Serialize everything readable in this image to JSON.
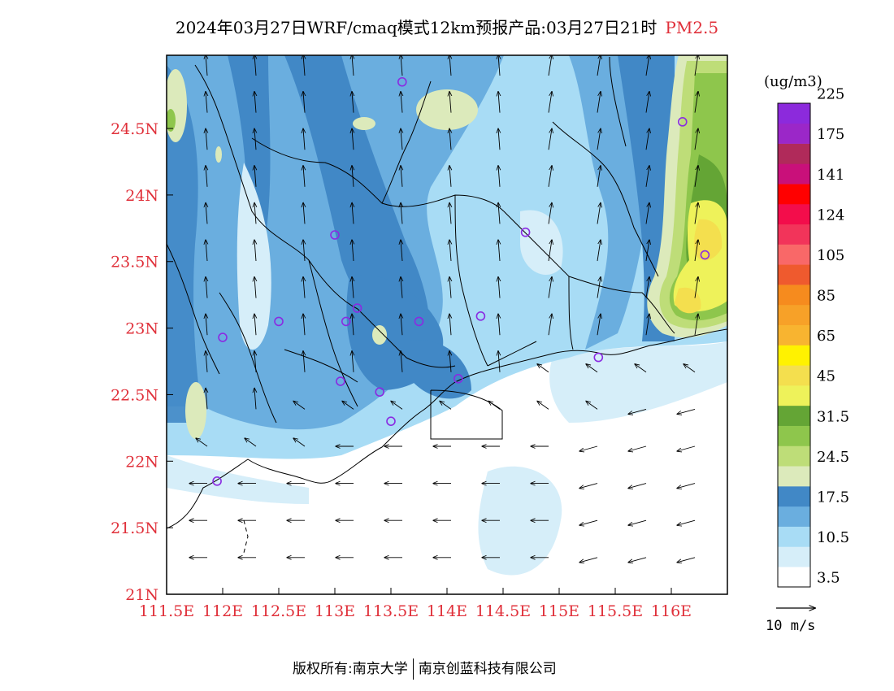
{
  "title": {
    "main": "2024年03月27日WRF/cmaq模式12km预报产品:03月27日21时",
    "pollutant": "PM2.5"
  },
  "footer": {
    "copyright": "版权所有:南京大学",
    "company": "南京创蓝科技有限公司"
  },
  "legend": {
    "unit": "(ug/m3)",
    "colors": [
      "#ffffff",
      "#d6eef9",
      "#a8dcf5",
      "#6aaedf",
      "#4188c6",
      "#dceabb",
      "#bedd78",
      "#8ec64c",
      "#64a535",
      "#eef25a",
      "#f4df4e",
      "#fff200",
      "#f8b430",
      "#f7a128",
      "#f68b1e",
      "#ef5a2e",
      "#f96868",
      "#f2345a",
      "#f30d4b",
      "#ff0000",
      "#c9107a",
      "#b02a5a",
      "#9b27c8",
      "#8c2adc"
    ],
    "labels": [
      {
        "text": "3.5",
        "after": 1
      },
      {
        "text": "10.5",
        "after": 3
      },
      {
        "text": "17.5",
        "after": 5
      },
      {
        "text": "24.5",
        "after": 7
      },
      {
        "text": "31.5",
        "after": 9
      },
      {
        "text": "45",
        "after": 11
      },
      {
        "text": "65",
        "after": 13
      },
      {
        "text": "85",
        "after": 15
      },
      {
        "text": "105",
        "after": 17
      },
      {
        "text": "124",
        "after": 19
      },
      {
        "text": "141",
        "after": 21
      },
      {
        "text": "175",
        "after": 23
      },
      {
        "text": "225",
        "after": 25
      }
    ]
  },
  "wind_scale": {
    "label": "10 m/s"
  },
  "axes": {
    "lon_ticks": [
      "111.5E",
      "112E",
      "112.5E",
      "113E",
      "113.5E",
      "114E",
      "114.5E",
      "115E",
      "115.5E",
      "116E"
    ],
    "lat_ticks": [
      "21N",
      "21.5N",
      "22N",
      "22.5N",
      "23N",
      "23.5N",
      "24N",
      "24.5N"
    ],
    "lon_values": [
      111.5,
      112,
      112.5,
      113,
      113.5,
      114,
      114.5,
      115,
      115.5,
      116
    ],
    "lat_values": [
      21,
      21.5,
      22,
      22.5,
      23,
      23.5,
      24,
      24.5
    ],
    "lon_range": [
      111.5,
      116.5
    ],
    "lat_range": [
      21,
      25.05
    ]
  },
  "stations": [
    [
      113.6,
      24.85
    ],
    [
      116.1,
      24.55
    ],
    [
      113.0,
      23.7
    ],
    [
      114.7,
      23.72
    ],
    [
      116.3,
      23.55
    ],
    [
      112.5,
      23.05
    ],
    [
      113.1,
      23.05
    ],
    [
      113.2,
      23.15
    ],
    [
      113.75,
      23.05
    ],
    [
      114.3,
      23.09
    ],
    [
      112.0,
      22.93
    ],
    [
      115.35,
      22.78
    ],
    [
      113.05,
      22.6
    ],
    [
      113.4,
      22.52
    ],
    [
      114.1,
      22.62
    ],
    [
      113.5,
      22.3
    ],
    [
      111.95,
      21.85
    ]
  ],
  "accent_color": "#e0303a"
}
